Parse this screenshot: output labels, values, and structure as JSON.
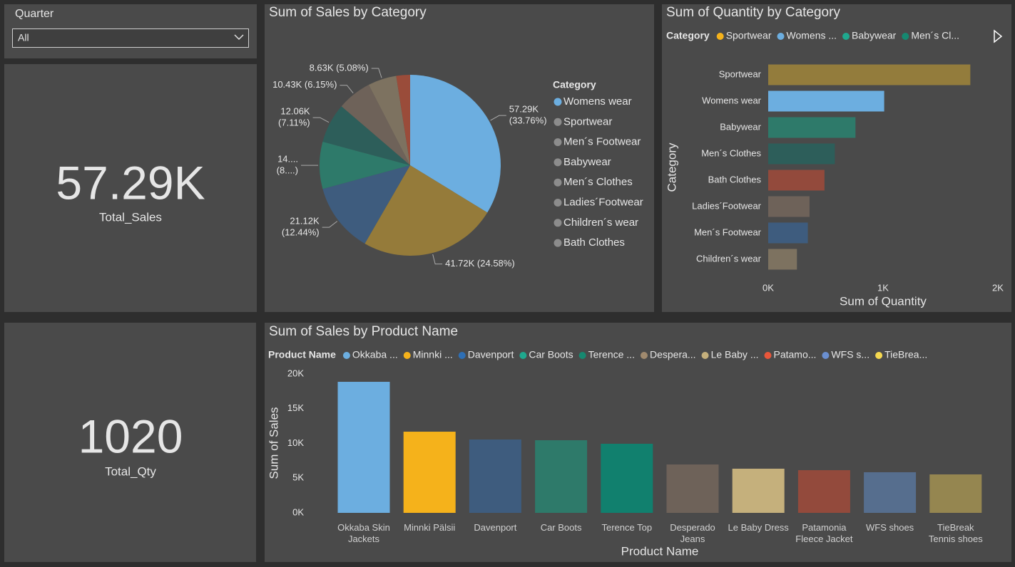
{
  "slicer": {
    "label": "Quarter",
    "value": "All"
  },
  "cards": [
    {
      "value": "57.29K",
      "label": "Total_Sales"
    },
    {
      "value": "1020",
      "label": "Total_Qty"
    }
  ],
  "chart_data": [
    {
      "type": "pie",
      "title": "Sum of Sales by Category",
      "legend_title": "Category",
      "categories": [
        "Womens wear",
        "Sportwear",
        "Men´s Footwear",
        "Babywear",
        "Men´s Clothes",
        "Ladies´Footwear",
        "Children´s wear",
        "Bath Clothes"
      ],
      "values": [
        57290,
        41720,
        21120,
        14260,
        12060,
        10430,
        8630,
        4190
      ],
      "value_labels": [
        [
          "57.29K",
          "(33.76%)"
        ],
        [
          "41.72K (24.58%)"
        ],
        [
          "21.12K",
          "(12.44%)"
        ],
        [
          "14....",
          "(8....)"
        ],
        [
          "12.06K",
          "(7.11%)"
        ],
        [
          "10.43K (6.15%)"
        ],
        [
          "8.63K (5.08%)"
        ],
        null
      ],
      "colors": [
        "#6caee0",
        "#957b3a",
        "#3e5c7e",
        "#2e7a6a",
        "#2d5e5a",
        "#6e6259",
        "#7d7260",
        "#9a4c3a"
      ],
      "legend_marker_colors": [
        "#6caee0",
        "#8c8c8c",
        "#8c8c8c",
        "#8c8c8c",
        "#8c8c8c",
        "#8c8c8c",
        "#8c8c8c",
        "#8c8c8c"
      ]
    },
    {
      "type": "hbar",
      "title": "Sum of Quantity by Category",
      "legend_title": "Category",
      "legend": [
        {
          "name": "Sportwear",
          "color": "#f5b21b"
        },
        {
          "name": "Womens ...",
          "color": "#6caee0"
        },
        {
          "name": "Babywear",
          "color": "#1fa88e"
        },
        {
          "name": "Men´s Cl...",
          "color": "#168870"
        }
      ],
      "categories": [
        "Sportwear",
        "Womens wear",
        "Babywear",
        "Men´s Clothes",
        "Bath Clothes",
        "Ladies´Footwear",
        "Men´s Footwear",
        "Children´s wear"
      ],
      "values": [
        1760,
        1010,
        760,
        580,
        490,
        360,
        345,
        250
      ],
      "colors": [
        "#937c3c",
        "#6caee0",
        "#2e7a6a",
        "#2d5e5a",
        "#934a3c",
        "#6e6259",
        "#3e5c7e",
        "#7d7260"
      ],
      "xlim": [
        0,
        2000
      ],
      "xticks": [
        {
          "value": 0,
          "label": "0K"
        },
        {
          "value": 1000,
          "label": "1K"
        },
        {
          "value": 2000,
          "label": "2K"
        }
      ],
      "xlabel": "Sum of Quantity",
      "ylabel": "Category"
    },
    {
      "type": "bar",
      "title": "Sum of Sales by Product Name",
      "legend_title": "Product Name",
      "legend": [
        {
          "name": "Okkaba ...",
          "color": "#6caee0"
        },
        {
          "name": "Minnki ...",
          "color": "#f5b21b"
        },
        {
          "name": "Davenport",
          "color": "#2e6fb5"
        },
        {
          "name": "Car Boots",
          "color": "#1fa88e"
        },
        {
          "name": "Terence ...",
          "color": "#168870"
        },
        {
          "name": "Despera...",
          "color": "#a08a6e"
        },
        {
          "name": "Le Baby ...",
          "color": "#c5b07c"
        },
        {
          "name": "Patamo...",
          "color": "#e8563a"
        },
        {
          "name": "WFS s...",
          "color": "#6a8fd0"
        },
        {
          "name": "TieBrea...",
          "color": "#f5d850"
        }
      ],
      "categories": [
        "Okkaba Skin Jackets",
        "Minnki Pälsii",
        "Davenport",
        "Car Boots",
        "Terence Top",
        "Desperado Jeans",
        "Le Baby Dress",
        "Patamonia Fleece Jacket",
        "WFS shoes",
        "TieBreak Tennis shoes"
      ],
      "values": [
        18870,
        11690,
        10560,
        10460,
        9950,
        6970,
        6360,
        6150,
        5850,
        5540
      ],
      "colors": [
        "#6caee0",
        "#f5b21b",
        "#3e5c7e",
        "#2e7a6a",
        "#11806e",
        "#6e6259",
        "#c5b07c",
        "#934a3c",
        "#566e8e",
        "#958650"
      ],
      "ylim": [
        0,
        20000
      ],
      "yticks": [
        {
          "value": 0,
          "label": "0K"
        },
        {
          "value": 5000,
          "label": "5K"
        },
        {
          "value": 10000,
          "label": "10K"
        },
        {
          "value": 15000,
          "label": "15K"
        },
        {
          "value": 20000,
          "label": "20K"
        }
      ],
      "xlabel": "Product Name",
      "ylabel": "Sum of Sales"
    }
  ]
}
